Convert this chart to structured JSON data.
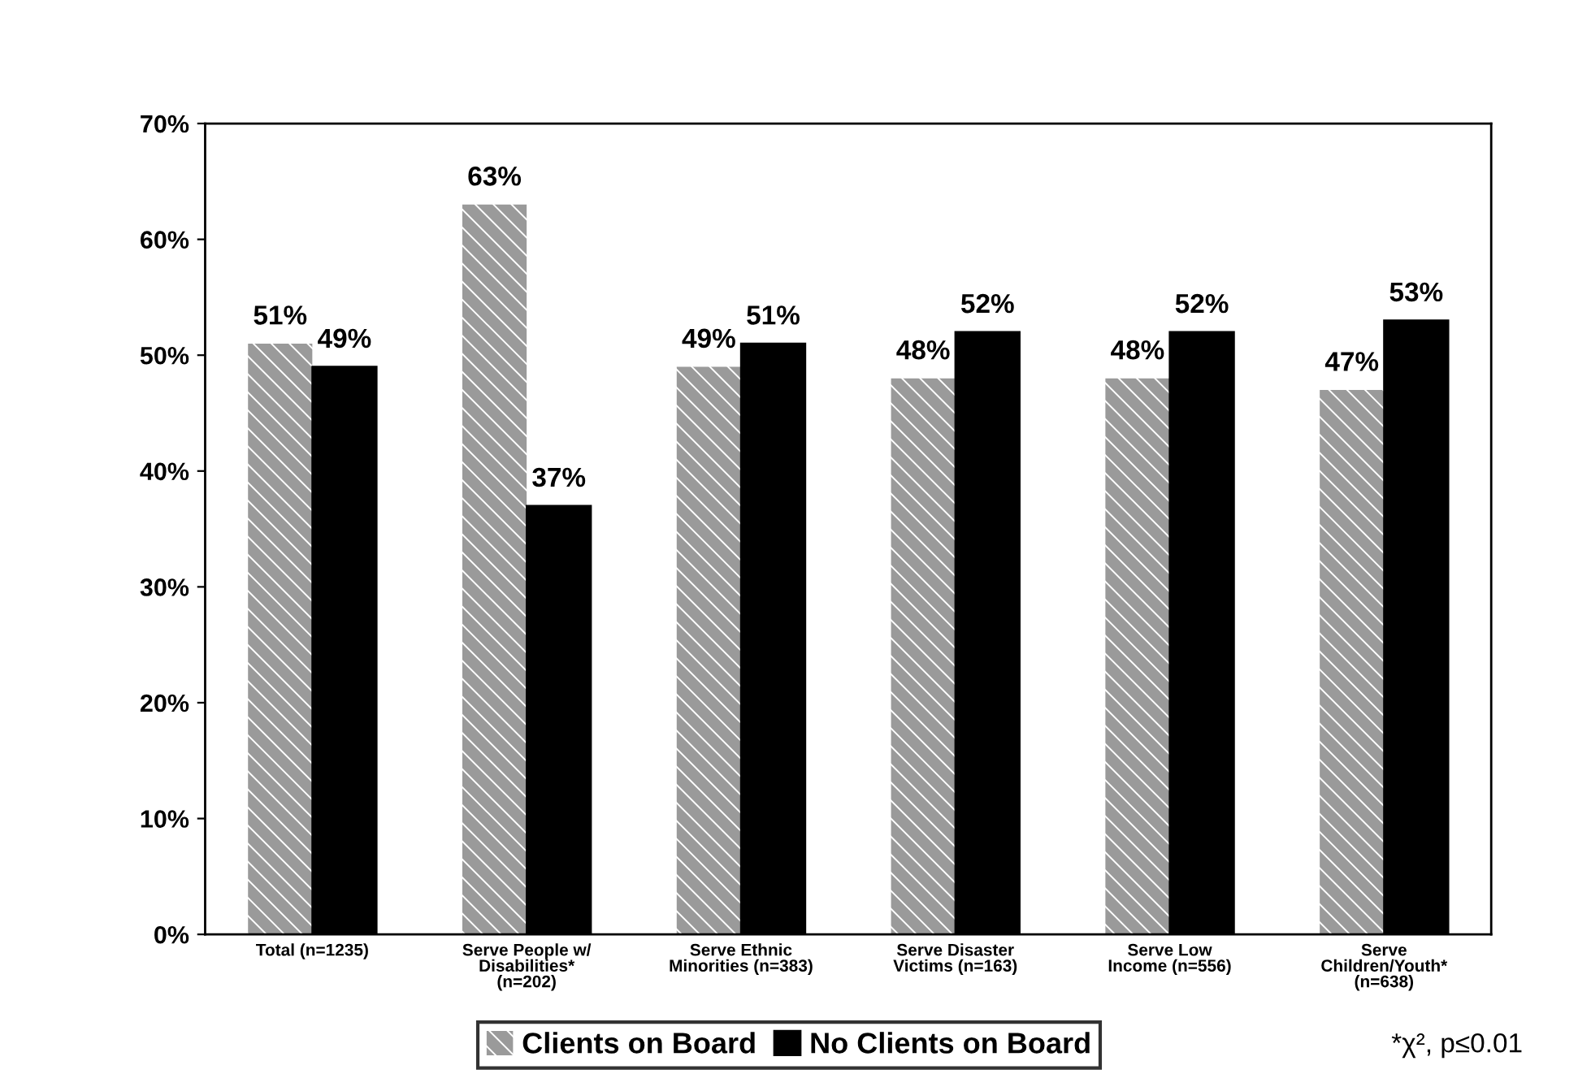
{
  "chart_data": {
    "type": "bar",
    "categories": [
      "Total (n=1235)",
      "Serve People w/\nDisabilities*\n(n=202)",
      "Serve Ethnic\nMinorities (n=383)",
      "Serve Disaster\nVictims (n=163)",
      "Serve Low\nIncome (n=556)",
      "Serve\nChildren/Youth*\n(n=638)"
    ],
    "series": [
      {
        "name": "Clients on Board",
        "color": "#9a9a9a",
        "values": [
          51,
          63,
          49,
          48,
          48,
          47
        ],
        "value_labels": [
          "51%",
          "63%",
          "49%",
          "48%",
          "48%",
          "47%"
        ]
      },
      {
        "name": "No Clients on Board",
        "color": "#000000",
        "values": [
          49,
          37,
          51,
          52,
          52,
          53
        ],
        "value_labels": [
          "49%",
          "37%",
          "51%",
          "52%",
          "52%",
          "53%"
        ]
      }
    ],
    "ylim": [
      0,
      70
    ],
    "yticks": [
      {
        "value": 0,
        "label": "0%"
      },
      {
        "value": 10,
        "label": "10%"
      },
      {
        "value": 20,
        "label": "20%"
      },
      {
        "value": 30,
        "label": "30%"
      },
      {
        "value": 40,
        "label": "40%"
      },
      {
        "value": 50,
        "label": "50%"
      },
      {
        "value": 60,
        "label": "60%"
      },
      {
        "value": 70,
        "label": "70%"
      }
    ],
    "legend": "bottom",
    "grid": false,
    "annotations": [
      "*χ², p≤0.01"
    ]
  }
}
